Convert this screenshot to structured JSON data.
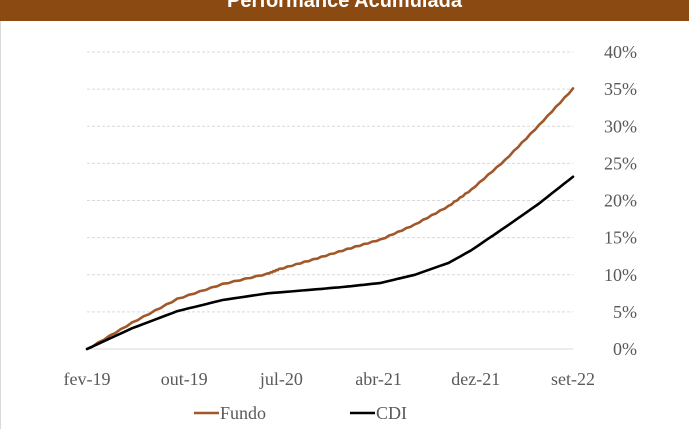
{
  "header": {
    "title": "Performance Acumulada"
  },
  "colors": {
    "header_bg": "#8B4A12",
    "fundo": "#A0582A",
    "cdi": "#000000",
    "grid": "#d9d9d9",
    "tick": "#595959"
  },
  "chart_data": {
    "type": "line",
    "title": "Performance Acumulada",
    "x_ticks": [
      "fev-19",
      "out-19",
      "jul-20",
      "abr-21",
      "dez-21",
      "set-22"
    ],
    "x_range": [
      "2019-02",
      "2022-09"
    ],
    "y_ticks": [
      "0%",
      "5%",
      "10%",
      "15%",
      "20%",
      "25%",
      "30%",
      "35%",
      "40%"
    ],
    "ylim": [
      0,
      40
    ],
    "y_unit": "%",
    "grid": true,
    "legend_position": "bottom",
    "series": [
      {
        "name": "Fundo",
        "color": "#A0582A",
        "x": [
          "2019-02",
          "2019-06",
          "2019-10",
          "2020-02",
          "2020-06",
          "2020-07",
          "2020-10",
          "2021-01",
          "2021-04",
          "2021-07",
          "2021-10",
          "2021-12",
          "2022-03",
          "2022-06",
          "2022-09"
        ],
        "y": [
          0,
          3.6,
          6.8,
          8.8,
          10.2,
          10.8,
          12.1,
          13.5,
          14.8,
          16.8,
          19.3,
          21.5,
          25.5,
          30.2,
          35.1
        ]
      },
      {
        "name": "CDI",
        "color": "#000000",
        "x": [
          "2019-02",
          "2019-06",
          "2019-10",
          "2020-02",
          "2020-06",
          "2020-10",
          "2021-01",
          "2021-04",
          "2021-07",
          "2021-10",
          "2021-12",
          "2022-03",
          "2022-06",
          "2022-09"
        ],
        "y": [
          0,
          2.8,
          5.1,
          6.6,
          7.5,
          8.0,
          8.4,
          8.9,
          10.0,
          11.6,
          13.3,
          16.4,
          19.6,
          23.2
        ]
      }
    ]
  }
}
